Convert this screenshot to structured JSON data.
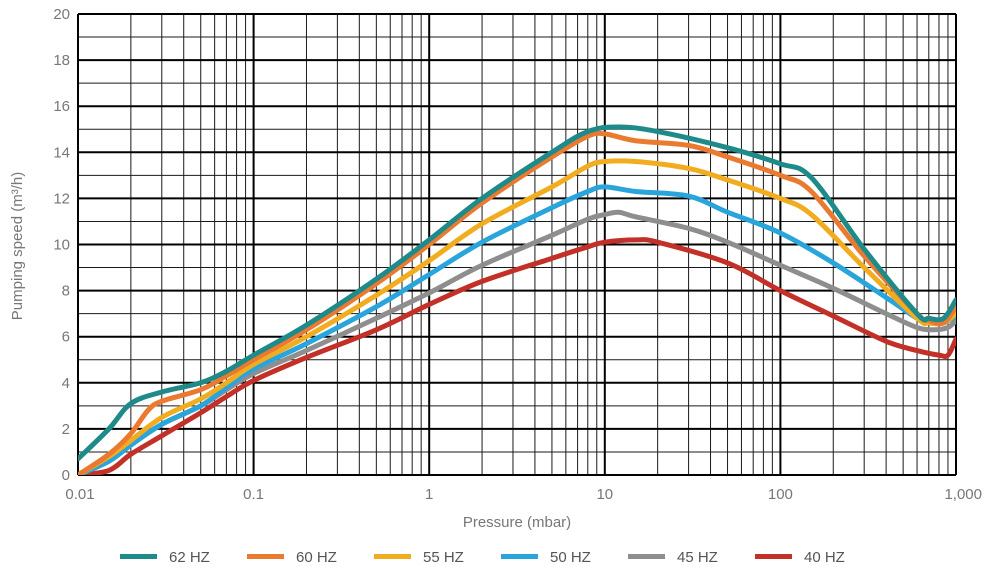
{
  "chart_data": {
    "type": "line",
    "title": "",
    "xlabel": "Pressure (mbar)",
    "ylabel": "Pumping speed (m³/h)",
    "x_scale": "log",
    "xlim": [
      0.01,
      1000
    ],
    "ylim": [
      0,
      20
    ],
    "grid": true,
    "legend_position": "bottom",
    "x_ticks": [
      {
        "value": 0.01,
        "label": "0.01"
      },
      {
        "value": 0.1,
        "label": "0.1"
      },
      {
        "value": 1,
        "label": "1"
      },
      {
        "value": 10,
        "label": "10"
      },
      {
        "value": 100,
        "label": "100"
      },
      {
        "value": 1000,
        "label": "1,000"
      }
    ],
    "y_ticks": [
      {
        "value": 0,
        "label": "0"
      },
      {
        "value": 2,
        "label": "2"
      },
      {
        "value": 4,
        "label": "4"
      },
      {
        "value": 6,
        "label": "6"
      },
      {
        "value": 8,
        "label": "8"
      },
      {
        "value": 10,
        "label": "10"
      },
      {
        "value": 12,
        "label": "12"
      },
      {
        "value": 14,
        "label": "14"
      },
      {
        "value": 16,
        "label": "16"
      },
      {
        "value": 18,
        "label": "18"
      },
      {
        "value": 20,
        "label": "20"
      }
    ],
    "series": [
      {
        "name": "62 HZ",
        "color": "#1f8a8a",
        "points": [
          [
            0.01,
            0.7
          ],
          [
            0.015,
            2
          ],
          [
            0.02,
            3.1
          ],
          [
            0.03,
            3.6
          ],
          [
            0.05,
            4.0
          ],
          [
            0.07,
            4.5
          ],
          [
            0.1,
            5.2
          ],
          [
            0.2,
            6.5
          ],
          [
            0.5,
            8.5
          ],
          [
            1,
            10.2
          ],
          [
            2,
            12.0
          ],
          [
            5,
            14.0
          ],
          [
            8,
            14.9
          ],
          [
            12,
            15.1
          ],
          [
            20,
            14.9
          ],
          [
            50,
            14.2
          ],
          [
            100,
            13.5
          ],
          [
            150,
            12.9
          ],
          [
            300,
            9.8
          ],
          [
            600,
            7.0
          ],
          [
            700,
            6.8
          ],
          [
            850,
            6.8
          ],
          [
            1000,
            7.6
          ]
        ]
      },
      {
        "name": "60 HZ",
        "color": "#ea7a30",
        "points": [
          [
            0.01,
            0
          ],
          [
            0.015,
            0.9
          ],
          [
            0.02,
            1.8
          ],
          [
            0.025,
            2.8
          ],
          [
            0.03,
            3.2
          ],
          [
            0.05,
            3.7
          ],
          [
            0.07,
            4.3
          ],
          [
            0.1,
            5.0
          ],
          [
            0.2,
            6.3
          ],
          [
            0.5,
            8.3
          ],
          [
            1,
            10.0
          ],
          [
            2,
            11.8
          ],
          [
            5,
            13.8
          ],
          [
            8,
            14.7
          ],
          [
            10,
            14.8
          ],
          [
            15,
            14.5
          ],
          [
            30,
            14.3
          ],
          [
            50,
            13.8
          ],
          [
            100,
            13.0
          ],
          [
            150,
            12.3
          ],
          [
            300,
            9.5
          ],
          [
            600,
            7.0
          ],
          [
            700,
            6.7
          ],
          [
            850,
            6.6
          ],
          [
            1000,
            7.3
          ]
        ]
      },
      {
        "name": "55 HZ",
        "color": "#f2ac20",
        "points": [
          [
            0.01,
            0
          ],
          [
            0.015,
            0.8
          ],
          [
            0.02,
            1.5
          ],
          [
            0.03,
            2.5
          ],
          [
            0.05,
            3.3
          ],
          [
            0.07,
            4.0
          ],
          [
            0.1,
            4.8
          ],
          [
            0.2,
            6.0
          ],
          [
            0.5,
            7.8
          ],
          [
            1,
            9.3
          ],
          [
            2,
            10.9
          ],
          [
            5,
            12.5
          ],
          [
            8,
            13.4
          ],
          [
            10,
            13.6
          ],
          [
            15,
            13.6
          ],
          [
            30,
            13.3
          ],
          [
            50,
            12.8
          ],
          [
            100,
            12.0
          ],
          [
            150,
            11.3
          ],
          [
            300,
            9.0
          ],
          [
            600,
            6.8
          ],
          [
            700,
            6.6
          ],
          [
            850,
            6.6
          ],
          [
            1000,
            7.0
          ]
        ]
      },
      {
        "name": "50 HZ",
        "color": "#2aa5dc",
        "points": [
          [
            0.01,
            0
          ],
          [
            0.015,
            0.6
          ],
          [
            0.02,
            1.3
          ],
          [
            0.03,
            2.2
          ],
          [
            0.05,
            3.0
          ],
          [
            0.07,
            3.8
          ],
          [
            0.1,
            4.6
          ],
          [
            0.2,
            5.7
          ],
          [
            0.5,
            7.3
          ],
          [
            1,
            8.7
          ],
          [
            2,
            10.1
          ],
          [
            5,
            11.6
          ],
          [
            8,
            12.3
          ],
          [
            10,
            12.5
          ],
          [
            15,
            12.3
          ],
          [
            30,
            12.1
          ],
          [
            50,
            11.4
          ],
          [
            100,
            10.5
          ],
          [
            200,
            9.2
          ],
          [
            400,
            7.7
          ],
          [
            600,
            6.8
          ],
          [
            700,
            6.6
          ],
          [
            850,
            6.6
          ],
          [
            1000,
            6.9
          ]
        ]
      },
      {
        "name": "45 HZ",
        "color": "#8e8e8e",
        "points": [
          [
            0.01,
            0
          ],
          [
            0.015,
            0.6
          ],
          [
            0.02,
            1.3
          ],
          [
            0.03,
            2.2
          ],
          [
            0.05,
            3.0
          ],
          [
            0.07,
            3.7
          ],
          [
            0.1,
            4.4
          ],
          [
            0.2,
            5.4
          ],
          [
            0.5,
            6.8
          ],
          [
            1,
            7.9
          ],
          [
            2,
            9.1
          ],
          [
            5,
            10.4
          ],
          [
            8,
            11.1
          ],
          [
            10,
            11.3
          ],
          [
            12,
            11.4
          ],
          [
            15,
            11.2
          ],
          [
            30,
            10.7
          ],
          [
            50,
            10.1
          ],
          [
            100,
            9.1
          ],
          [
            200,
            8.1
          ],
          [
            400,
            7.0
          ],
          [
            600,
            6.4
          ],
          [
            750,
            6.3
          ],
          [
            900,
            6.4
          ],
          [
            1000,
            6.7
          ]
        ]
      },
      {
        "name": "40 HZ",
        "color": "#c23028",
        "points": [
          [
            0.01,
            0
          ],
          [
            0.015,
            0.2
          ],
          [
            0.02,
            0.9
          ],
          [
            0.03,
            1.7
          ],
          [
            0.05,
            2.7
          ],
          [
            0.07,
            3.4
          ],
          [
            0.1,
            4.1
          ],
          [
            0.2,
            5.1
          ],
          [
            0.5,
            6.3
          ],
          [
            1,
            7.4
          ],
          [
            2,
            8.4
          ],
          [
            5,
            9.4
          ],
          [
            8,
            9.9
          ],
          [
            10,
            10.1
          ],
          [
            15,
            10.2
          ],
          [
            20,
            10.1
          ],
          [
            50,
            9.2
          ],
          [
            100,
            8.0
          ],
          [
            200,
            6.9
          ],
          [
            400,
            5.8
          ],
          [
            600,
            5.4
          ],
          [
            800,
            5.2
          ],
          [
            900,
            5.2
          ],
          [
            1000,
            5.9
          ]
        ]
      }
    ]
  }
}
